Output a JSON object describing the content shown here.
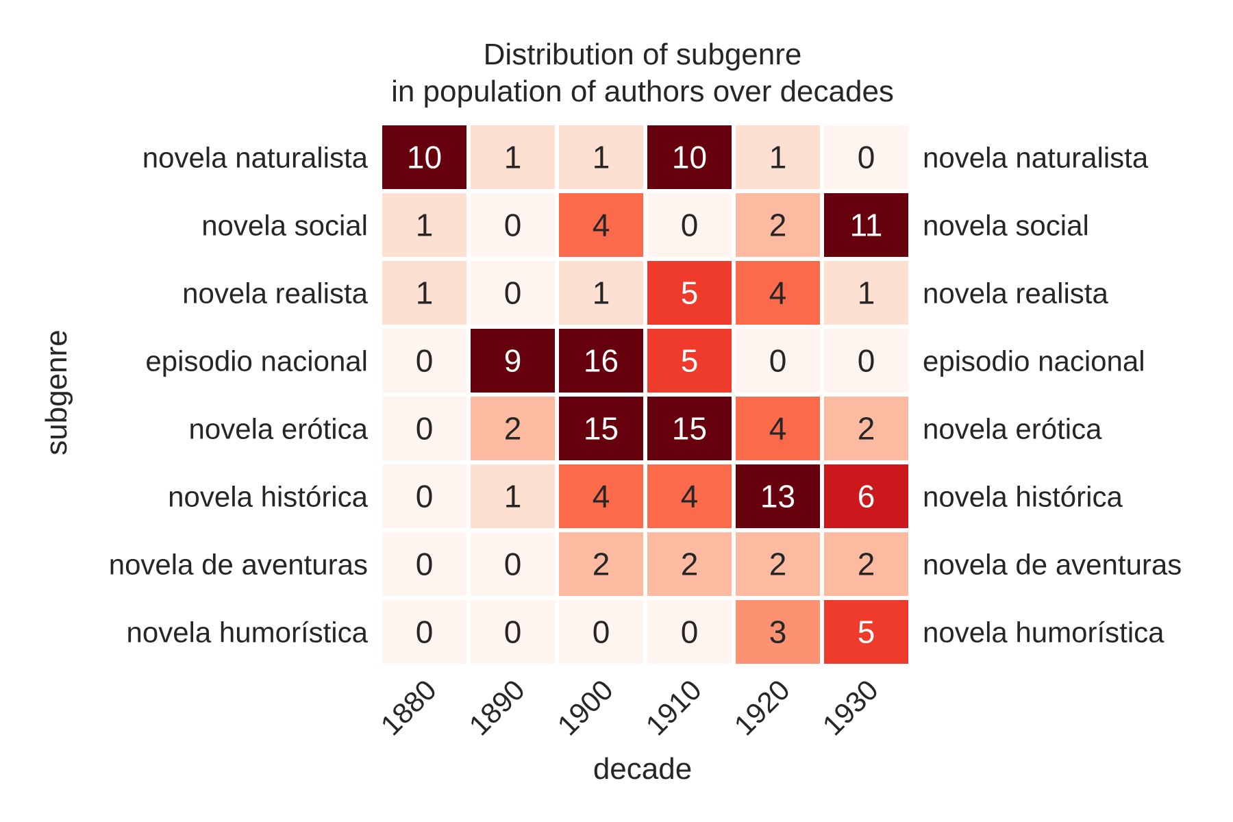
{
  "chart_data": {
    "type": "heatmap",
    "title_lines": [
      "Distribution of subgenre",
      "in population of authors over decades"
    ],
    "xlabel": "decade",
    "ylabel": "subgenre",
    "x_categories": [
      "1880",
      "1890",
      "1900",
      "1910",
      "1920",
      "1930"
    ],
    "y_categories": [
      "novela naturalista",
      "novela social",
      "novela realista",
      "episodio nacional",
      "novela erótica",
      "novela histórica",
      "novela de aventuras",
      "novela humorística"
    ],
    "values": [
      [
        10,
        1,
        1,
        10,
        1,
        0
      ],
      [
        1,
        0,
        4,
        0,
        2,
        11
      ],
      [
        1,
        0,
        1,
        5,
        4,
        1
      ],
      [
        0,
        9,
        16,
        5,
        0,
        0
      ],
      [
        0,
        2,
        15,
        15,
        4,
        2
      ],
      [
        0,
        1,
        4,
        4,
        13,
        6
      ],
      [
        0,
        0,
        2,
        2,
        2,
        2
      ],
      [
        0,
        0,
        0,
        0,
        3,
        5
      ]
    ],
    "colormap": "Reds",
    "color_range": [
      0,
      8
    ],
    "annotations": true,
    "y_labels_both_sides": true,
    "x_tick_rotation": -45,
    "colors": {
      "text_dark": "#262626",
      "text_light": "#ffffff",
      "cell_border": "#ffffff"
    }
  }
}
